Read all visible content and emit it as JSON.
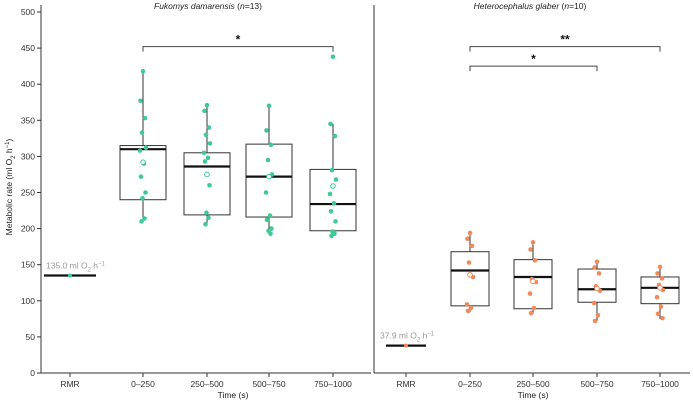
{
  "chart_data": {
    "type": "box",
    "ylabel": "Metabolic rate (ml O",
    "ylabel_sub": "2",
    "ylabel_mid": " h",
    "ylabel_sup": "−1",
    "ylabel_end": ")",
    "ylim": [
      0,
      500
    ],
    "yticks": [
      "0",
      "50",
      "100",
      "150",
      "200",
      "250",
      "300",
      "350",
      "400",
      "450",
      "500"
    ],
    "panels": [
      {
        "title_species": "Fukomys damarensis",
        "title_n_open": " (",
        "title_n_var": "n",
        "title_n_close": "=13)",
        "xlabel": "Time (s)",
        "categories": [
          "RMR",
          "0–250",
          "250–500",
          "500–750",
          "750–1000"
        ],
        "color": "#3fc995",
        "rmr": {
          "value": 135.0,
          "label_value": "135.0 ml O",
          "label_sub": "2",
          "label_mid": " h",
          "label_sup": "−1"
        },
        "boxes": [
          {
            "category": "0–250",
            "q1": 240,
            "median": 310,
            "q3": 315,
            "whisker_low": 210,
            "whisker_high": 418,
            "mean": 292,
            "points": [
              418,
              377,
              353,
              333,
              312,
              308,
              290,
              272,
              250,
              242,
              214,
              210
            ]
          },
          {
            "category": "250–500",
            "q1": 219,
            "median": 286,
            "q3": 305,
            "whisker_low": 206,
            "whisker_high": 371,
            "mean": 275,
            "points": [
              371,
              363,
              340,
              330,
              318,
              305,
              298,
              293,
              260,
              222,
              215,
              206
            ]
          },
          {
            "category": "500–750",
            "q1": 216,
            "median": 272,
            "q3": 317,
            "whisker_low": 193,
            "whisker_high": 370,
            "mean": 272,
            "points": [
              370,
              336,
              316,
              295,
              275,
              250,
              218,
              212,
              200,
              197,
              193
            ]
          },
          {
            "category": "750–1000",
            "q1": 197,
            "median": 234,
            "q3": 282,
            "whisker_low": 190,
            "whisker_high": 345,
            "mean": 259,
            "points": [
              438,
              345,
              328,
              281,
              268,
              248,
              235,
              224,
              210,
              196,
              193,
              190
            ]
          }
        ],
        "brackets": [
          {
            "from": "0–250",
            "to": "750–1000",
            "y": 452,
            "label": "*"
          }
        ]
      },
      {
        "title_species": "Heterocephalus glaber",
        "title_n_open": " (",
        "title_n_var": "n",
        "title_n_close": "=10)",
        "xlabel": "Time (s)",
        "categories": [
          "RMR",
          "0–250",
          "250–500",
          "500–750",
          "750–1000"
        ],
        "color": "#f08a5b",
        "rmr": {
          "value": 37.9,
          "label_value": "37.9 ml O",
          "label_sub": "2",
          "label_mid": " h",
          "label_sup": "−1"
        },
        "boxes": [
          {
            "category": "0–250",
            "q1": 93,
            "median": 142,
            "q3": 168,
            "whisker_low": 84,
            "whisker_high": 194,
            "mean": 136,
            "points": [
              194,
              186,
              176,
              153,
              133,
              95,
              90,
              86
            ]
          },
          {
            "category": "250–500",
            "q1": 89,
            "median": 133,
            "q3": 157,
            "whisker_low": 82,
            "whisker_high": 181,
            "mean": 127,
            "points": [
              181,
              171,
              156,
              130,
              126,
              110,
              90,
              83
            ]
          },
          {
            "category": "500–750",
            "q1": 98,
            "median": 116,
            "q3": 144,
            "whisker_low": 72,
            "whisker_high": 154,
            "mean": 117,
            "points": [
              154,
              146,
              138,
              120,
              114,
              97,
              80,
              72
            ]
          },
          {
            "category": "750–1000",
            "q1": 96,
            "median": 118,
            "q3": 133,
            "whisker_low": 75,
            "whisker_high": 147,
            "mean": 118,
            "points": [
              147,
              138,
              131,
              122,
              115,
              105,
              92,
              82,
              76
            ]
          }
        ],
        "brackets": [
          {
            "from": "0–250",
            "to": "750–1000",
            "y": 452,
            "label": "**"
          },
          {
            "from": "0–250",
            "to": "500–750",
            "y": 425,
            "label": "*"
          }
        ]
      }
    ]
  }
}
